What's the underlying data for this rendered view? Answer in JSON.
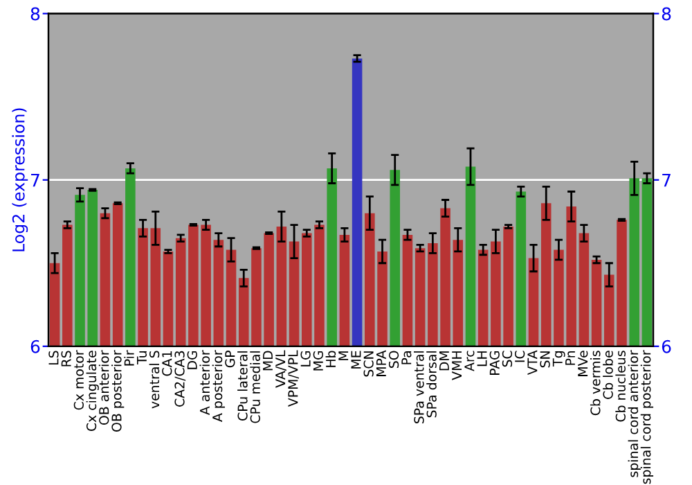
{
  "chart_data": {
    "type": "bar",
    "ylabel": "Log2 (expression)",
    "categories": [
      "LS",
      "RS",
      "Cx motor",
      "Cx cingulate",
      "OB anterior",
      "OB posterior",
      "Pir",
      "Tu",
      "ventral S",
      "CA1",
      "CA2/CA3",
      "DG",
      "A anterior",
      "A posterior",
      "GP",
      "CPu lateral",
      "CPu medial",
      "MD",
      "VA/VL",
      "VPM/VPL",
      "LG",
      "MG",
      "Hb",
      "M",
      "ME",
      "SCN",
      "MPA",
      "SO",
      "Pa",
      "SPa ventral",
      "SPa dorsal",
      "DM",
      "VMH",
      "Arc",
      "LH",
      "PAG",
      "SC",
      "IC",
      "VTA",
      "SN",
      "Tg",
      "Pn",
      "MVe",
      "Cb vermis",
      "Cb lobe",
      "Cb nucleus",
      "spinal cord anterior",
      "spinal cord posterior"
    ],
    "values": [
      6.5,
      6.73,
      6.91,
      6.94,
      6.8,
      6.86,
      7.07,
      6.71,
      6.71,
      6.57,
      6.65,
      6.73,
      6.73,
      6.64,
      6.58,
      6.41,
      6.59,
      6.68,
      6.72,
      6.63,
      6.68,
      6.73,
      7.07,
      6.67,
      7.73,
      6.8,
      6.57,
      7.06,
      6.67,
      6.59,
      6.62,
      6.83,
      6.64,
      7.08,
      6.58,
      6.63,
      6.72,
      6.93,
      6.53,
      6.86,
      6.58,
      6.84,
      6.68,
      6.52,
      6.43,
      6.76,
      7.01,
      7.01
    ],
    "errors": [
      0.06,
      0.02,
      0.04,
      0.005,
      0.03,
      0.005,
      0.03,
      0.05,
      0.1,
      0.01,
      0.02,
      0.005,
      0.03,
      0.04,
      0.07,
      0.05,
      0.005,
      0.005,
      0.09,
      0.1,
      0.02,
      0.02,
      0.09,
      0.04,
      0.02,
      0.1,
      0.07,
      0.09,
      0.03,
      0.02,
      0.06,
      0.05,
      0.07,
      0.11,
      0.03,
      0.07,
      0.01,
      0.03,
      0.08,
      0.1,
      0.06,
      0.09,
      0.05,
      0.02,
      0.07,
      0.005,
      0.1,
      0.03
    ],
    "colors": [
      "#b83434",
      "#b83434",
      "#33a033",
      "#33a033",
      "#b83434",
      "#b83434",
      "#33a033",
      "#b83434",
      "#b83434",
      "#b83434",
      "#b83434",
      "#b83434",
      "#b83434",
      "#b83434",
      "#b83434",
      "#b83434",
      "#b83434",
      "#b83434",
      "#b83434",
      "#b83434",
      "#b83434",
      "#b83434",
      "#33a033",
      "#b83434",
      "#3535c0",
      "#b83434",
      "#b83434",
      "#33a033",
      "#b83434",
      "#b83434",
      "#b83434",
      "#b83434",
      "#b83434",
      "#33a033",
      "#b83434",
      "#b83434",
      "#b83434",
      "#33a033",
      "#b83434",
      "#b83434",
      "#b83434",
      "#b83434",
      "#b83434",
      "#b83434",
      "#b83434",
      "#b83434",
      "#33a033",
      "#33a033"
    ],
    "ylim": [
      6,
      8
    ],
    "yticks": [
      6,
      7,
      8
    ],
    "y2lim": [
      6,
      8
    ],
    "y2ticks": [
      6,
      7,
      8
    ],
    "grid": "y"
  }
}
